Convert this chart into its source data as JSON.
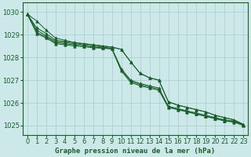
{
  "xlabel": "Graphe pression niveau de la mer (hPa)",
  "hours": [
    0,
    1,
    2,
    3,
    4,
    5,
    6,
    7,
    8,
    9,
    10,
    11,
    12,
    13,
    14,
    15,
    16,
    17,
    18,
    19,
    20,
    21,
    22,
    23
  ],
  "lines": [
    [
      1029.9,
      1029.6,
      1029.2,
      1028.85,
      1028.75,
      1028.65,
      1028.6,
      1028.55,
      1028.5,
      1028.45,
      1028.35,
      1027.8,
      1027.3,
      1027.1,
      1027.0,
      1026.05,
      1025.9,
      1025.8,
      1025.7,
      1025.6,
      1025.45,
      1025.35,
      1025.25,
      1025.05
    ],
    [
      1029.9,
      1029.3,
      1029.05,
      1028.75,
      1028.7,
      1028.65,
      1028.6,
      1028.55,
      1028.5,
      1028.45,
      1028.35,
      1027.8,
      1027.3,
      1027.1,
      1027.0,
      1026.05,
      1025.9,
      1025.8,
      1025.7,
      1025.6,
      1025.45,
      1025.35,
      1025.25,
      1025.05
    ],
    [
      1029.9,
      1029.2,
      1028.95,
      1028.7,
      1028.65,
      1028.6,
      1028.55,
      1028.5,
      1028.45,
      1028.4,
      1027.5,
      1027.0,
      1026.85,
      1026.75,
      1026.65,
      1025.85,
      1025.75,
      1025.65,
      1025.55,
      1025.45,
      1025.35,
      1025.25,
      1025.2,
      1025.05
    ],
    [
      1029.9,
      1029.1,
      1028.9,
      1028.65,
      1028.6,
      1028.55,
      1028.5,
      1028.45,
      1028.42,
      1028.38,
      1027.45,
      1026.95,
      1026.8,
      1026.7,
      1026.6,
      1025.82,
      1025.72,
      1025.62,
      1025.52,
      1025.42,
      1025.32,
      1025.22,
      1025.18,
      1025.02
    ],
    [
      1029.9,
      1029.05,
      1028.85,
      1028.6,
      1028.55,
      1028.5,
      1028.47,
      1028.42,
      1028.4,
      1028.37,
      1027.4,
      1026.9,
      1026.75,
      1026.65,
      1026.55,
      1025.8,
      1025.7,
      1025.6,
      1025.5,
      1025.4,
      1025.3,
      1025.2,
      1025.15,
      1025.0
    ]
  ],
  "line_color": "#1a5c2a",
  "marker": "^",
  "bg_color": "#cce8e8",
  "grid_color": "#a8cccc",
  "ylim": [
    1024.6,
    1030.4
  ],
  "yticks": [
    1025,
    1026,
    1027,
    1028,
    1029,
    1030
  ],
  "tick_fontsize": 6.0
}
